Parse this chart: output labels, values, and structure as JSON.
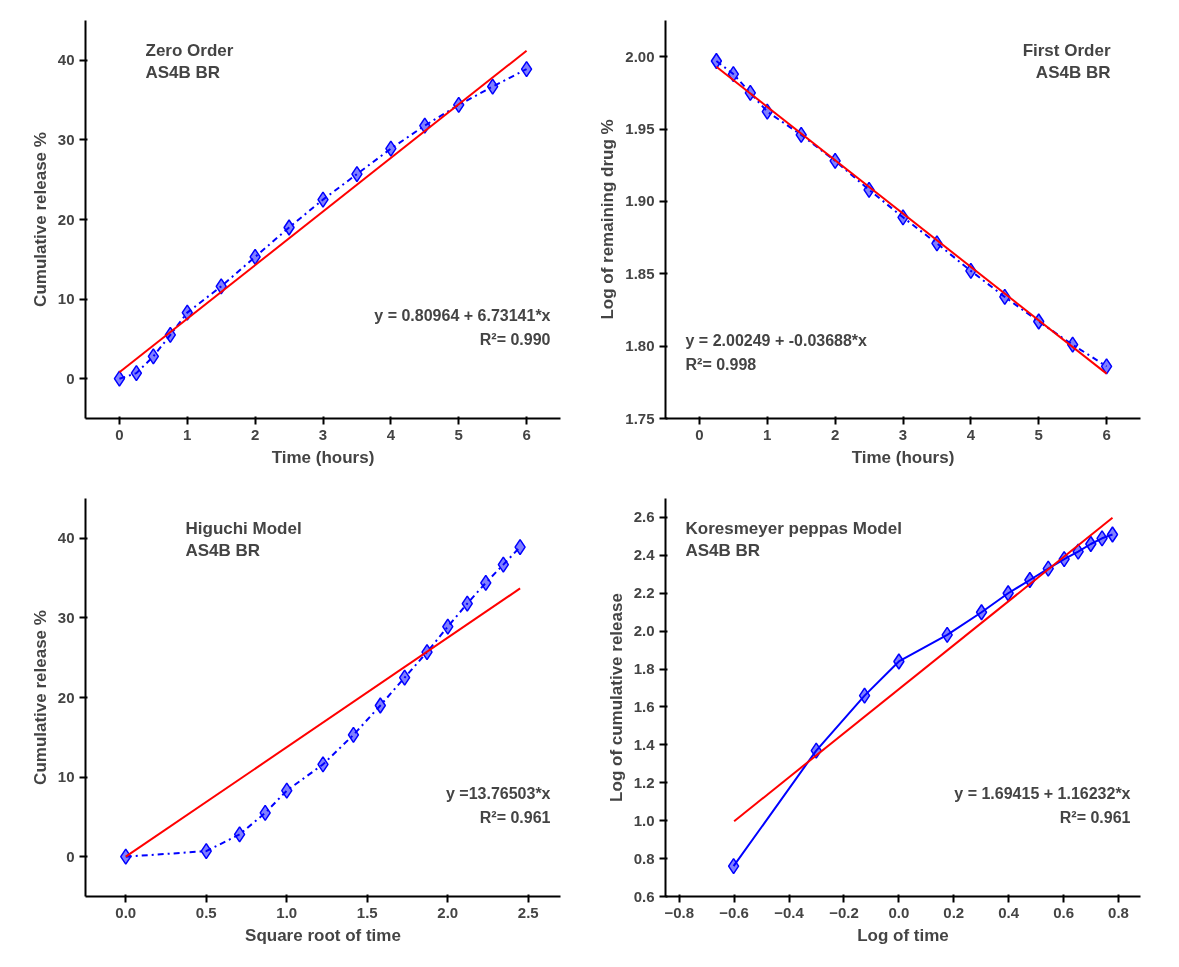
{
  "chart_data": [
    {
      "type": "line",
      "title": "Zero Order\nAS4B BR",
      "xlabel": "Time (hours)",
      "ylabel": "Cumulative release %",
      "annotations": [
        "y = 0.80964 + 6.73141*x",
        "R²= 0.990"
      ],
      "xlim": [
        -0.5,
        6.5
      ],
      "ylim": [
        -5,
        45
      ],
      "xticks": [
        0,
        1,
        2,
        3,
        4,
        5,
        6
      ],
      "yticks": [
        0,
        10,
        20,
        30,
        40
      ],
      "grid": false,
      "series": [
        {
          "color": "#0000ff",
          "marker": "diamond",
          "line_style": "dashed",
          "x": [
            0,
            0.25,
            0.5,
            0.75,
            1,
            1.5,
            2,
            2.5,
            3,
            3.5,
            4,
            4.5,
            5,
            5.5,
            6
          ],
          "values": [
            0,
            0.7,
            2.8,
            5.5,
            8.3,
            11.6,
            15.3,
            19.0,
            22.5,
            25.7,
            28.9,
            31.8,
            34.4,
            36.7,
            38.9
          ]
        },
        {
          "color": "#ff0000",
          "marker": "none",
          "line_style": "solid",
          "x": [
            0,
            6
          ],
          "values": [
            0.8,
            41.2
          ]
        }
      ]
    },
    {
      "type": "line",
      "title": "First Order\nAS4B BR",
      "xlabel": "Time (hours)",
      "ylabel": "Log of remaining drug %",
      "annotations": [
        "y = 2.00249 + -0.03688*x",
        "R²= 0.998"
      ],
      "xlim": [
        -0.5,
        6.5
      ],
      "ylim": [
        1.75,
        2.025
      ],
      "xticks": [
        0,
        1,
        2,
        3,
        4,
        5,
        6
      ],
      "yticks": [
        {
          "value": 1.75,
          "label": "1.75"
        },
        {
          "value": 1.8,
          "label": "1.80"
        },
        {
          "value": 1.85,
          "label": "1.85"
        },
        {
          "value": 1.9,
          "label": "1.90"
        },
        {
          "value": 1.95,
          "label": "1.95"
        },
        {
          "value": 2.0,
          "label": "2.00"
        }
      ],
      "grid": false,
      "series": [
        {
          "color": "#0000ff",
          "marker": "diamond",
          "line_style": "dashed",
          "x": [
            0.25,
            0.5,
            0.75,
            1,
            1.5,
            2,
            2.5,
            3,
            3.5,
            4,
            4.5,
            5,
            5.5,
            6
          ],
          "values": [
            1.997,
            1.988,
            1.975,
            1.962,
            1.946,
            1.928,
            1.908,
            1.889,
            1.871,
            1.852,
            1.834,
            1.817,
            1.801,
            1.786
          ]
        },
        {
          "color": "#ff0000",
          "marker": "none",
          "line_style": "solid",
          "x": [
            0.25,
            6
          ],
          "values": [
            1.993,
            1.781
          ]
        }
      ]
    },
    {
      "type": "line",
      "title": "Higuchi Model\nAS4B BR",
      "xlabel": "Square root of time",
      "ylabel": "Cumulative release %",
      "annotations": [
        "y =13.76503*x",
        "R²= 0.961"
      ],
      "xlim": [
        -0.25,
        2.7
      ],
      "ylim": [
        -5,
        45
      ],
      "xticks": [
        {
          "value": 0,
          "label": "0.0"
        },
        {
          "value": 0.5,
          "label": "0.5"
        },
        {
          "value": 1,
          "label": "1.0"
        },
        {
          "value": 1.5,
          "label": "1.5"
        },
        {
          "value": 2,
          "label": "2.0"
        },
        {
          "value": 2.5,
          "label": "2.5"
        }
      ],
      "yticks": [
        0,
        10,
        20,
        30,
        40
      ],
      "grid": false,
      "series": [
        {
          "color": "#0000ff",
          "marker": "diamond",
          "line_style": "dashed",
          "x": [
            0,
            0.5,
            0.707,
            0.866,
            1,
            1.225,
            1.414,
            1.581,
            1.732,
            1.871,
            2,
            2.121,
            2.236,
            2.345,
            2.449
          ],
          "values": [
            0,
            0.7,
            2.8,
            5.5,
            8.3,
            11.6,
            15.3,
            19.0,
            22.5,
            25.7,
            28.9,
            31.8,
            34.4,
            36.7,
            38.9
          ]
        },
        {
          "color": "#ff0000",
          "marker": "none",
          "line_style": "solid",
          "x": [
            0,
            2.449
          ],
          "values": [
            0,
            33.7
          ]
        }
      ]
    },
    {
      "type": "line",
      "title": "Koresmeyer peppas Model\nAS4B BR",
      "xlabel": "Log of time",
      "ylabel": "Log of cumulative release",
      "annotations": [
        "y = 1.69415 + 1.16232*x",
        "R²= 0.961"
      ],
      "xlim": [
        -0.85,
        0.88
      ],
      "ylim": [
        0.6,
        2.7
      ],
      "xticks": [
        -0.8,
        -0.6,
        -0.4,
        -0.2,
        {
          "value": 0,
          "label": "0.0"
        },
        0.2,
        0.4,
        0.6,
        0.8
      ],
      "yticks": [
        0.6,
        0.8,
        {
          "value": 1.0,
          "label": "1.0"
        },
        1.2,
        1.4,
        1.6,
        1.8,
        {
          "value": 2.0,
          "label": "2.0"
        },
        2.2,
        2.4,
        2.6
      ],
      "grid": false,
      "series": [
        {
          "color": "#0000ff",
          "marker": "diamond",
          "line_style": "solid",
          "x": [
            -0.602,
            -0.301,
            -0.125,
            0,
            0.176,
            0.301,
            0.398,
            0.477,
            0.544,
            0.602,
            0.653,
            0.699,
            0.74,
            0.778
          ],
          "values": [
            0.76,
            1.37,
            1.66,
            1.84,
            1.98,
            2.1,
            2.2,
            2.27,
            2.33,
            2.38,
            2.42,
            2.46,
            2.49,
            2.51
          ]
        },
        {
          "color": "#ff0000",
          "marker": "none",
          "line_style": "solid",
          "x": [
            -0.6,
            0.778
          ],
          "values": [
            0.997,
            2.598
          ]
        }
      ]
    }
  ]
}
